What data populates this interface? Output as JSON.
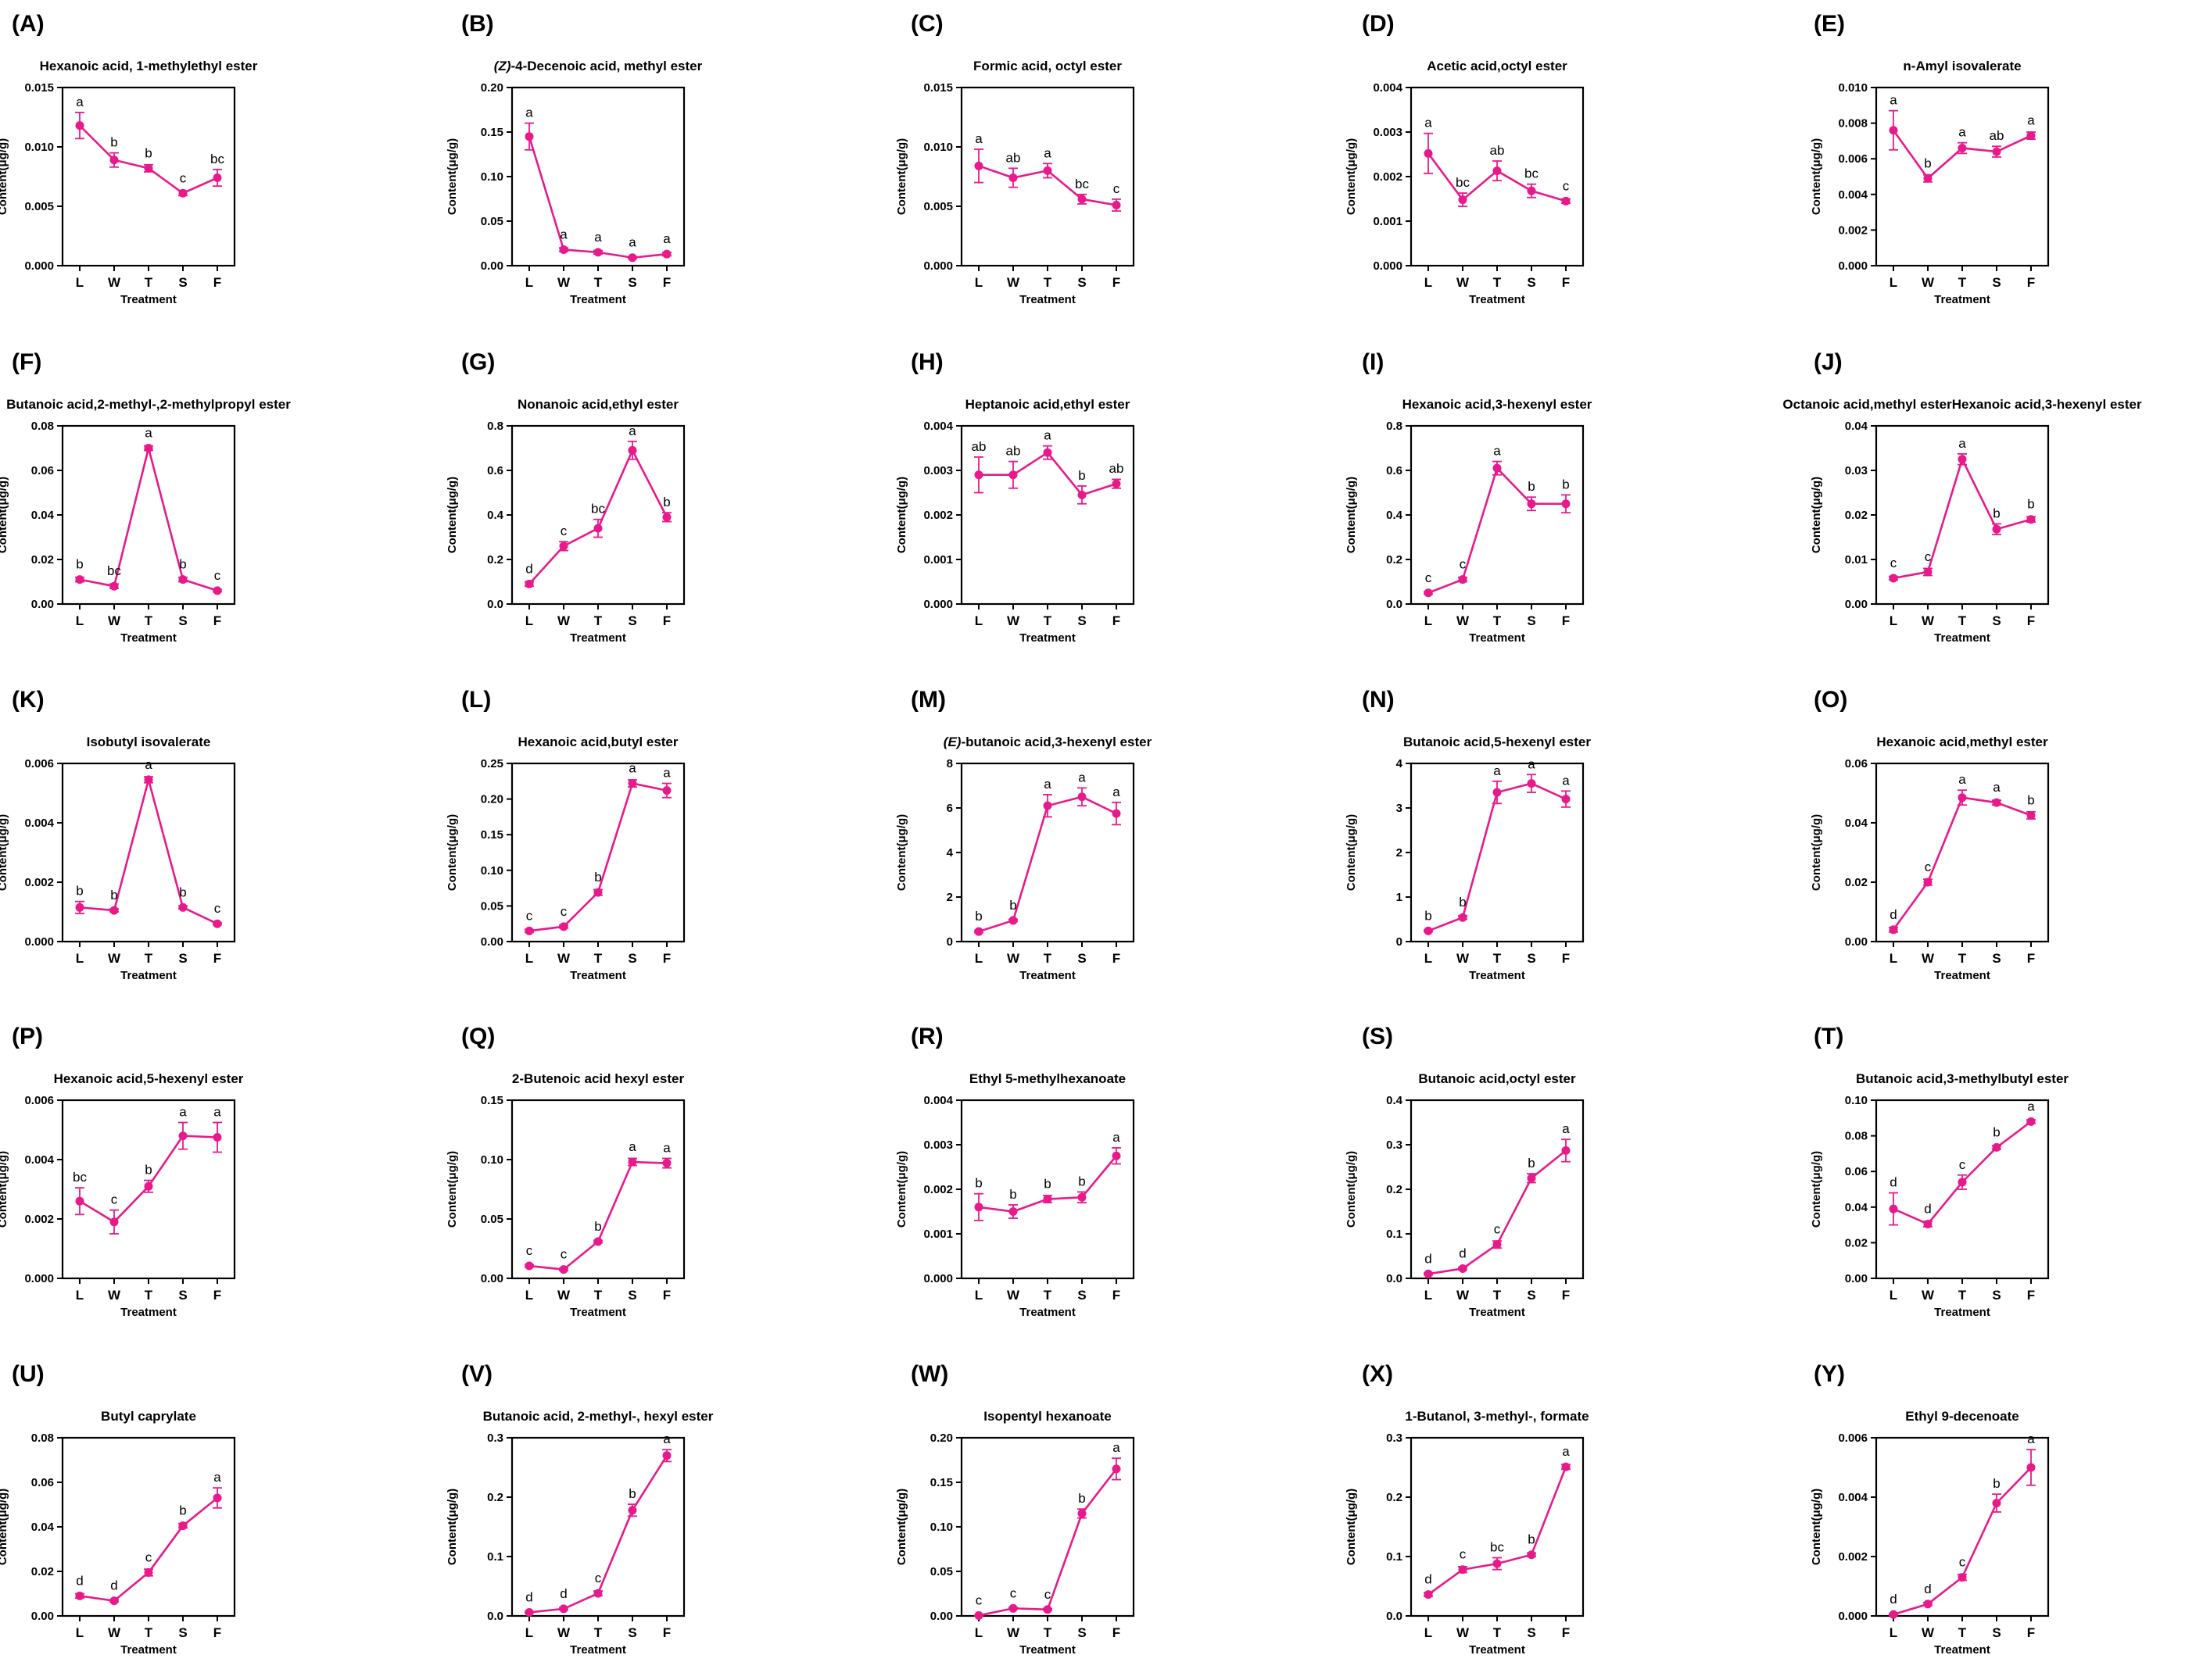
{
  "series_color": "#E8198B",
  "chart_data": [
    {
      "panel": "(A)",
      "type": "line",
      "title": "Hexanoic acid, 1-methylethyl ester",
      "xlabel": "Treatment",
      "ylabel": "Content(μg/g)",
      "categories": [
        "L",
        "W",
        "T",
        "S",
        "F"
      ],
      "ylim": [
        0,
        0.015
      ],
      "yticks": [
        "0.000",
        "0.005",
        "0.010",
        "0.015"
      ],
      "values": [
        0.0118,
        0.0089,
        0.0082,
        0.0061,
        0.0074
      ],
      "errors": [
        0.0011,
        0.0006,
        0.0003,
        0.0002,
        0.0007
      ],
      "letters": [
        "a",
        "b",
        "b",
        "c",
        "bc"
      ]
    },
    {
      "panel": "(B)",
      "type": "line",
      "title": "(Z)-4-Decenoic acid, methyl ester",
      "title_italic": "(Z)",
      "title_rest": "-4-Decenoic acid, methyl ester",
      "xlabel": "Treatment",
      "ylabel": "Content(μg/g)",
      "categories": [
        "L",
        "W",
        "T",
        "S",
        "F"
      ],
      "ylim": [
        0,
        0.2
      ],
      "yticks": [
        "0.00",
        "0.05",
        "0.10",
        "0.15",
        "0.20"
      ],
      "values": [
        0.145,
        0.018,
        0.015,
        0.009,
        0.013
      ],
      "errors": [
        0.015,
        0.002,
        0.002,
        0.001,
        0.002
      ],
      "letters": [
        "a",
        "a",
        "a",
        "a",
        "a"
      ]
    },
    {
      "panel": "(C)",
      "type": "line",
      "title": "Formic acid, octyl ester",
      "xlabel": "Treatment",
      "ylabel": "Content(μg/g)",
      "categories": [
        "L",
        "W",
        "T",
        "S",
        "F"
      ],
      "ylim": [
        0,
        0.015
      ],
      "yticks": [
        "0.000",
        "0.005",
        "0.010",
        "0.015"
      ],
      "values": [
        0.0084,
        0.0074,
        0.008,
        0.0056,
        0.0051
      ],
      "errors": [
        0.0014,
        0.0008,
        0.0006,
        0.0004,
        0.0005
      ],
      "letters": [
        "a",
        "ab",
        "a",
        "bc",
        "c"
      ]
    },
    {
      "panel": "(D)",
      "type": "line",
      "title": "Acetic acid,octyl ester",
      "xlabel": "Treatment",
      "ylabel": "Content(μg/g)",
      "categories": [
        "L",
        "W",
        "T",
        "S",
        "F"
      ],
      "ylim": [
        0,
        0.004
      ],
      "yticks": [
        "0.000",
        "0.001",
        "0.002",
        "0.003",
        "0.004"
      ],
      "values": [
        0.00252,
        0.00148,
        0.00213,
        0.00168,
        0.00145
      ],
      "errors": [
        0.00045,
        0.00015,
        0.00022,
        0.00015,
        5e-05
      ],
      "letters": [
        "a",
        "bc",
        "ab",
        "bc",
        "c"
      ]
    },
    {
      "panel": "(E)",
      "type": "line",
      "title": "n-Amyl isovalerate",
      "xlabel": "Treatment",
      "ylabel": "Content(μg/g)",
      "categories": [
        "L",
        "W",
        "T",
        "S",
        "F"
      ],
      "ylim": [
        0,
        0.01
      ],
      "yticks": [
        "0.000",
        "0.002",
        "0.004",
        "0.006",
        "0.008",
        "0.010"
      ],
      "values": [
        0.0076,
        0.0049,
        0.0066,
        0.0064,
        0.0073
      ],
      "errors": [
        0.0011,
        0.0002,
        0.0003,
        0.0003,
        0.0002
      ],
      "letters": [
        "a",
        "b",
        "a",
        "ab",
        "a"
      ]
    },
    {
      "panel": "(F)",
      "type": "line",
      "title": "Butanoic acid,2-methyl-,2-methylpropyl ester",
      "xlabel": "Treatment",
      "ylabel": "Content(μg/g)",
      "categories": [
        "L",
        "W",
        "T",
        "S",
        "F"
      ],
      "ylim": [
        0,
        0.08
      ],
      "yticks": [
        "0.00",
        "0.02",
        "0.04",
        "0.06",
        "0.08"
      ],
      "values": [
        0.011,
        0.008,
        0.07,
        0.011,
        0.006
      ],
      "errors": [
        0.001,
        0.001,
        0.001,
        0.001,
        0.0005
      ],
      "letters": [
        "b",
        "bc",
        "a",
        "b",
        "c"
      ]
    },
    {
      "panel": "(G)",
      "type": "line",
      "title": "Nonanoic acid,ethyl ester",
      "xlabel": "Treatment",
      "ylabel": "Content(μg/g)",
      "categories": [
        "L",
        "W",
        "T",
        "S",
        "F"
      ],
      "ylim": [
        0,
        0.8
      ],
      "yticks": [
        "0.0",
        "0.2",
        "0.4",
        "0.6",
        "0.8"
      ],
      "values": [
        0.09,
        0.26,
        0.34,
        0.69,
        0.39
      ],
      "errors": [
        0.01,
        0.02,
        0.04,
        0.04,
        0.02
      ],
      "letters": [
        "d",
        "c",
        "bc",
        "a",
        "b"
      ]
    },
    {
      "panel": "(H)",
      "type": "line",
      "title": "Heptanoic acid,ethyl ester",
      "xlabel": "Treatment",
      "ylabel": "Content(μg/g)",
      "categories": [
        "L",
        "W",
        "T",
        "S",
        "F"
      ],
      "ylim": [
        0,
        0.004
      ],
      "yticks": [
        "0.000",
        "0.001",
        "0.002",
        "0.003",
        "0.004"
      ],
      "values": [
        0.0029,
        0.0029,
        0.0034,
        0.00245,
        0.0027
      ],
      "errors": [
        0.0004,
        0.0003,
        0.00015,
        0.0002,
        0.0001
      ],
      "letters": [
        "ab",
        "ab",
        "a",
        "b",
        "ab"
      ]
    },
    {
      "panel": "(I)",
      "type": "line",
      "title": "Hexanoic acid,3-hexenyl ester",
      "xlabel": "Treatment",
      "ylabel": "Content(μg/g)",
      "categories": [
        "L",
        "W",
        "T",
        "S",
        "F"
      ],
      "ylim": [
        0,
        0.8
      ],
      "yticks": [
        "0.0",
        "0.2",
        "0.4",
        "0.6",
        "0.8"
      ],
      "values": [
        0.05,
        0.11,
        0.61,
        0.45,
        0.45
      ],
      "errors": [
        0.005,
        0.01,
        0.03,
        0.03,
        0.04
      ],
      "letters": [
        "c",
        "c",
        "a",
        "b",
        "b"
      ]
    },
    {
      "panel": "(J)",
      "type": "line",
      "title": "Octanoic acid,methyl esterHexanoic acid,3-hexenyl ester",
      "xlabel": "Treatment",
      "ylabel": "Content(μg/g)",
      "categories": [
        "L",
        "W",
        "T",
        "S",
        "F"
      ],
      "ylim": [
        0,
        0.04
      ],
      "yticks": [
        "0.00",
        "0.01",
        "0.02",
        "0.03",
        "0.04"
      ],
      "values": [
        0.0058,
        0.0072,
        0.0325,
        0.0168,
        0.019
      ],
      "errors": [
        0.0004,
        0.0008,
        0.0012,
        0.0012,
        0.0006
      ],
      "letters": [
        "c",
        "c",
        "a",
        "b",
        "b"
      ]
    },
    {
      "panel": "(K)",
      "type": "line",
      "title": "Isobutyl isovalerate",
      "xlabel": "Treatment",
      "ylabel": "Content(μg/g)",
      "categories": [
        "L",
        "W",
        "T",
        "S",
        "F"
      ],
      "ylim": [
        0,
        0.006
      ],
      "yticks": [
        "0.000",
        "0.002",
        "0.004",
        "0.006"
      ],
      "values": [
        0.00115,
        0.00105,
        0.00545,
        0.00115,
        0.0006
      ],
      "errors": [
        0.0002,
        5e-05,
        0.0001,
        5e-05,
        3e-05
      ],
      "letters": [
        "b",
        "b",
        "a",
        "b",
        "c"
      ]
    },
    {
      "panel": "(L)",
      "type": "line",
      "title": "Hexanoic acid,butyl ester",
      "xlabel": "Treatment",
      "ylabel": "Content(μg/g)",
      "categories": [
        "L",
        "W",
        "T",
        "S",
        "F"
      ],
      "ylim": [
        0,
        0.25
      ],
      "yticks": [
        "0.00",
        "0.05",
        "0.10",
        "0.15",
        "0.20",
        "0.25"
      ],
      "values": [
        0.015,
        0.021,
        0.069,
        0.222,
        0.212
      ],
      "errors": [
        0.002,
        0.002,
        0.004,
        0.005,
        0.01
      ],
      "letters": [
        "c",
        "c",
        "b",
        "a",
        "a"
      ]
    },
    {
      "panel": "(M)",
      "type": "line",
      "title": "(E)-butanoic acid,3-hexenyl ester",
      "title_italic": "(E)",
      "title_rest": "-butanoic acid,3-hexenyl ester",
      "xlabel": "Treatment",
      "ylabel": "Content(μg/g)",
      "categories": [
        "L",
        "W",
        "T",
        "S",
        "F"
      ],
      "ylim": [
        0,
        8
      ],
      "yticks": [
        "0",
        "2",
        "4",
        "6",
        "8"
      ],
      "values": [
        0.45,
        0.95,
        6.1,
        6.5,
        5.75
      ],
      "errors": [
        0.05,
        0.05,
        0.5,
        0.4,
        0.5
      ],
      "letters": [
        "b",
        "b",
        "a",
        "a",
        "a"
      ]
    },
    {
      "panel": "(N)",
      "type": "line",
      "title": "Butanoic acid,5-hexenyl ester",
      "xlabel": "Treatment",
      "ylabel": "Content(μg/g)",
      "categories": [
        "L",
        "W",
        "T",
        "S",
        "F"
      ],
      "ylim": [
        0,
        4
      ],
      "yticks": [
        "0",
        "1",
        "2",
        "3",
        "4"
      ],
      "values": [
        0.24,
        0.54,
        3.35,
        3.55,
        3.2
      ],
      "errors": [
        0.02,
        0.04,
        0.25,
        0.2,
        0.18
      ],
      "letters": [
        "b",
        "b",
        "a",
        "a",
        "a"
      ]
    },
    {
      "panel": "(O)",
      "type": "line",
      "title": "Hexanoic acid,methyl ester",
      "xlabel": "Treatment",
      "ylabel": "Content(μg/g)",
      "categories": [
        "L",
        "W",
        "T",
        "S",
        "F"
      ],
      "ylim": [
        0,
        0.06
      ],
      "yticks": [
        "0.00",
        "0.02",
        "0.04",
        "0.06"
      ],
      "values": [
        0.004,
        0.02,
        0.0485,
        0.0468,
        0.0425
      ],
      "errors": [
        0.0008,
        0.001,
        0.0025,
        0.0008,
        0.0012
      ],
      "letters": [
        "d",
        "c",
        "a",
        "a",
        "b"
      ]
    },
    {
      "panel": "(P)",
      "type": "line",
      "title": "Hexanoic acid,5-hexenyl ester",
      "xlabel": "Treatment",
      "ylabel": "Content(μg/g)",
      "categories": [
        "L",
        "W",
        "T",
        "S",
        "F"
      ],
      "ylim": [
        0,
        0.006
      ],
      "yticks": [
        "0.000",
        "0.002",
        "0.004",
        "0.006"
      ],
      "values": [
        0.0026,
        0.0019,
        0.0031,
        0.0048,
        0.00475
      ],
      "errors": [
        0.00045,
        0.0004,
        0.0002,
        0.00045,
        0.0005
      ],
      "letters": [
        "bc",
        "c",
        "b",
        "a",
        "a"
      ]
    },
    {
      "panel": "(Q)",
      "type": "line",
      "title": "2-Butenoic acid hexyl ester",
      "xlabel": "Treatment",
      "ylabel": "Content(μg/g)",
      "categories": [
        "L",
        "W",
        "T",
        "S",
        "F"
      ],
      "ylim": [
        0,
        0.15
      ],
      "yticks": [
        "0.00",
        "0.05",
        "0.10",
        "0.15"
      ],
      "values": [
        0.0105,
        0.0075,
        0.031,
        0.098,
        0.097
      ],
      "errors": [
        0.001,
        0.001,
        0.001,
        0.003,
        0.004
      ],
      "letters": [
        "c",
        "c",
        "b",
        "a",
        "a"
      ]
    },
    {
      "panel": "(R)",
      "type": "line",
      "title": "Ethyl 5-methylhexanoate",
      "xlabel": "Treatment",
      "ylabel": "Content(μg/g)",
      "categories": [
        "L",
        "W",
        "T",
        "S",
        "F"
      ],
      "ylim": [
        0,
        0.004
      ],
      "yticks": [
        "0.000",
        "0.001",
        "0.002",
        "0.003",
        "0.004"
      ],
      "values": [
        0.0016,
        0.0015,
        0.00178,
        0.00182,
        0.00275
      ],
      "errors": [
        0.0003,
        0.00015,
        8e-05,
        0.00012,
        0.00018
      ],
      "letters": [
        "b",
        "b",
        "b",
        "b",
        "a"
      ]
    },
    {
      "panel": "(S)",
      "type": "line",
      "title": "Butanoic acid,octyl ester",
      "xlabel": "Treatment",
      "ylabel": "Content(μg/g)",
      "categories": [
        "L",
        "W",
        "T",
        "S",
        "F"
      ],
      "ylim": [
        0,
        0.4
      ],
      "yticks": [
        "0.0",
        "0.1",
        "0.2",
        "0.3",
        "0.4"
      ],
      "values": [
        0.01,
        0.022,
        0.076,
        0.225,
        0.287
      ],
      "errors": [
        0.002,
        0.003,
        0.008,
        0.01,
        0.025
      ],
      "letters": [
        "d",
        "d",
        "c",
        "b",
        "a"
      ]
    },
    {
      "panel": "(T)",
      "type": "line",
      "title": "Butanoic acid,3-methylbutyl ester",
      "xlabel": "Treatment",
      "ylabel": "Content(μg/g)",
      "categories": [
        "L",
        "W",
        "T",
        "S",
        "F"
      ],
      "ylim": [
        0,
        0.1
      ],
      "yticks": [
        "0.00",
        "0.02",
        "0.04",
        "0.06",
        "0.08",
        "0.10"
      ],
      "values": [
        0.039,
        0.0305,
        0.054,
        0.0735,
        0.088
      ],
      "errors": [
        0.009,
        0.0015,
        0.004,
        0.001,
        0.001
      ],
      "letters": [
        "d",
        "d",
        "c",
        "b",
        "a"
      ]
    },
    {
      "panel": "(U)",
      "type": "line",
      "title": "Butyl caprylate",
      "xlabel": "Treatment",
      "ylabel": "Content(μg/g)",
      "categories": [
        "L",
        "W",
        "T",
        "S",
        "F"
      ],
      "ylim": [
        0,
        0.08
      ],
      "yticks": [
        "0.00",
        "0.02",
        "0.04",
        "0.06",
        "0.08"
      ],
      "values": [
        0.009,
        0.0068,
        0.0195,
        0.0405,
        0.053
      ],
      "errors": [
        0.001,
        0.0005,
        0.0015,
        0.001,
        0.0045
      ],
      "letters": [
        "d",
        "d",
        "c",
        "b",
        "a"
      ]
    },
    {
      "panel": "(V)",
      "type": "line",
      "title": "Butanoic acid, 2-methyl-, hexyl ester",
      "xlabel": "Treatment",
      "ylabel": "Content(μg/g)",
      "categories": [
        "L",
        "W",
        "T",
        "S",
        "F"
      ],
      "ylim": [
        0,
        0.3
      ],
      "yticks": [
        "0.0",
        "0.1",
        "0.2",
        "0.3"
      ],
      "values": [
        0.006,
        0.012,
        0.038,
        0.178,
        0.27
      ],
      "errors": [
        0.001,
        0.002,
        0.004,
        0.01,
        0.01
      ],
      "letters": [
        "d",
        "d",
        "c",
        "b",
        "a"
      ]
    },
    {
      "panel": "(W)",
      "type": "line",
      "title": "Isopentyl hexanoate",
      "xlabel": "Treatment",
      "ylabel": "Content(μg/g)",
      "categories": [
        "L",
        "W",
        "T",
        "S",
        "F"
      ],
      "ylim": [
        0,
        0.2
      ],
      "yticks": [
        "0.00",
        "0.05",
        "0.10",
        "0.15",
        "0.20"
      ],
      "values": [
        0.0005,
        0.0085,
        0.0072,
        0.115,
        0.165
      ],
      "errors": [
        0.0002,
        0.001,
        0.001,
        0.005,
        0.012
      ],
      "letters": [
        "c",
        "c",
        "c",
        "b",
        "a"
      ]
    },
    {
      "panel": "(X)",
      "type": "line",
      "title": "1-Butanol, 3-methyl-, formate",
      "xlabel": "Treatment",
      "ylabel": "Content(μg/g)",
      "categories": [
        "L",
        "W",
        "T",
        "S",
        "F"
      ],
      "ylim": [
        0,
        0.3
      ],
      "yticks": [
        "0.0",
        "0.1",
        "0.2",
        "0.3"
      ],
      "values": [
        0.036,
        0.078,
        0.088,
        0.103,
        0.251
      ],
      "errors": [
        0.003,
        0.005,
        0.01,
        0.003,
        0.004
      ],
      "letters": [
        "d",
        "c",
        "bc",
        "b",
        "a"
      ]
    },
    {
      "panel": "(Y)",
      "type": "line",
      "title": "Ethyl 9-decenoate",
      "xlabel": "Treatment",
      "ylabel": "Content(μg/g)",
      "categories": [
        "L",
        "W",
        "T",
        "S",
        "F"
      ],
      "ylim": [
        0,
        0.006
      ],
      "yticks": [
        "0.000",
        "0.002",
        "0.004",
        "0.006"
      ],
      "values": [
        5e-05,
        0.0004,
        0.0013,
        0.0038,
        0.005
      ],
      "errors": [
        2e-05,
        5e-05,
        0.0001,
        0.0003,
        0.0006
      ],
      "letters": [
        "d",
        "d",
        "c",
        "b",
        "a"
      ]
    }
  ]
}
